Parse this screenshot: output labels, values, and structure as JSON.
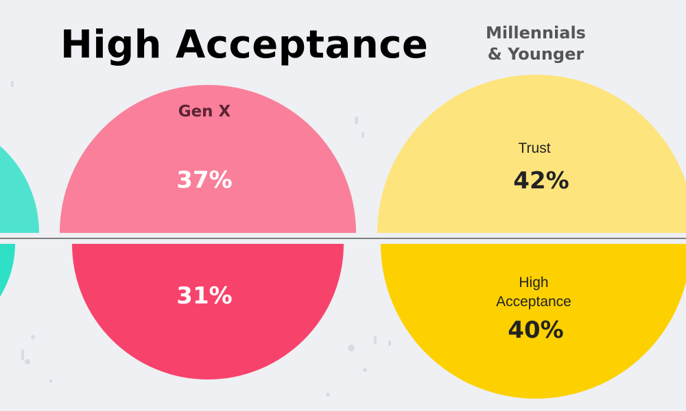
{
  "title": "High Acceptance",
  "colors": {
    "background": "#eef0f3",
    "boomers_top": "#4fe3cf",
    "boomers_bottom": "#2ee0c5",
    "genx_top": "#f97f9a",
    "genx_bottom": "#f7436c",
    "millennials_top": "#fde47c",
    "millennials_bottom": "#fdd000",
    "divider": "#555555",
    "label_dark": "#222222",
    "label_grey": "#555555",
    "genx_label": "#5a2432",
    "white": "#ffffff"
  },
  "chart_data": {
    "type": "semicircle-comparison",
    "title": "High Acceptance",
    "categories": [
      "Gen X",
      "Millennials & Younger"
    ],
    "series": [
      {
        "name": "Trust",
        "values": [
          37,
          42
        ]
      },
      {
        "name": "High Acceptance",
        "values": [
          31,
          40
        ]
      }
    ],
    "value_labels": {
      "Gen X": {
        "Trust": "37%",
        "High Acceptance": "31%"
      },
      "Millennials & Younger": {
        "Trust": "42%",
        "High Acceptance": "40%"
      }
    },
    "group_labels": {
      "genx": "Gen X",
      "millennials_line1": "Millennials",
      "millennials_line2": "& Younger"
    },
    "inner_labels": {
      "trust": "Trust",
      "high_acceptance_line1": "High",
      "high_acceptance_line2": "Acceptance"
    }
  }
}
